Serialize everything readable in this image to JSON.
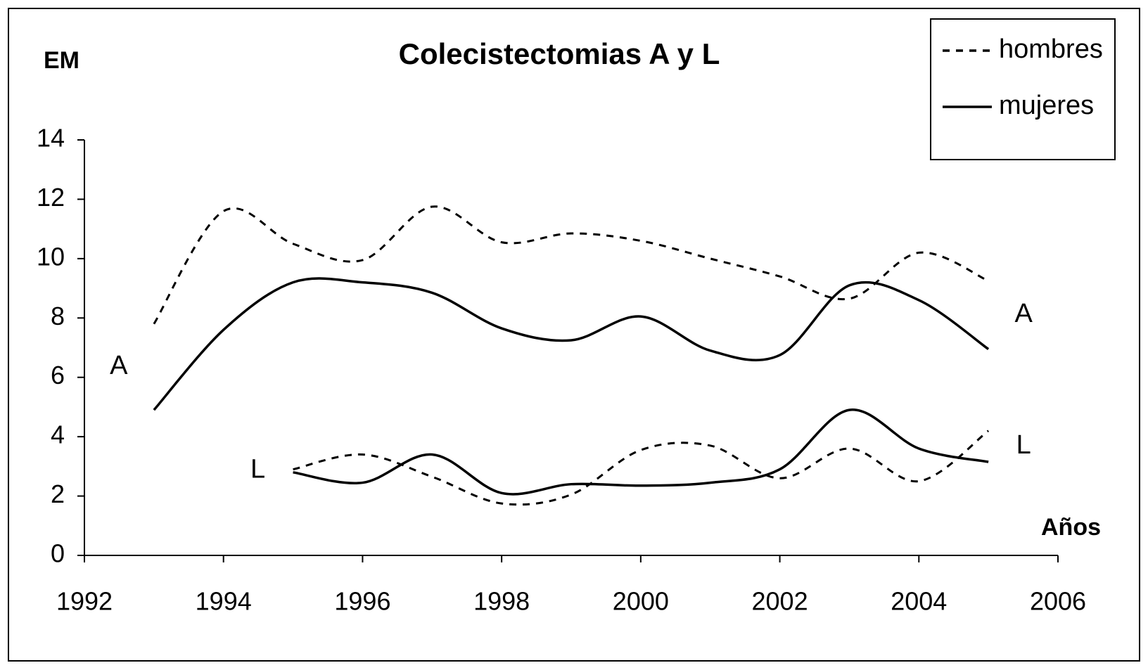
{
  "chart_data": {
    "type": "line",
    "title": "Colecistectomias A y L",
    "ylabel": "EM",
    "xlabel": "Años",
    "groups": [
      "A",
      "L"
    ],
    "x": [
      1993,
      1994,
      1995,
      1996,
      1997,
      1998,
      1999,
      2000,
      2001,
      2002,
      2003,
      2004,
      2005
    ],
    "series": [
      {
        "name": "hombres",
        "color": "#000000",
        "dashed": true,
        "values": [
          [
            7.8,
            11.6,
            10.5,
            9.95,
            11.75,
            10.55,
            10.85,
            10.6,
            10.0,
            9.4,
            8.65,
            10.2,
            9.25
          ],
          [
            null,
            null,
            2.9,
            3.4,
            2.65,
            1.75,
            2.05,
            3.55,
            3.7,
            2.6,
            3.6,
            2.5,
            4.2
          ]
        ]
      },
      {
        "name": "mujeres",
        "color": "#000000",
        "dashed": false,
        "values": [
          [
            4.9,
            7.6,
            9.2,
            9.2,
            8.85,
            7.65,
            7.25,
            8.05,
            6.9,
            6.75,
            9.1,
            8.6,
            6.95
          ],
          [
            null,
            null,
            2.8,
            2.45,
            3.4,
            2.1,
            2.4,
            2.35,
            2.45,
            2.9,
            4.9,
            3.6,
            3.15
          ]
        ]
      }
    ],
    "xlim": [
      1992,
      2006
    ],
    "xticks": [
      1992,
      1994,
      1996,
      1998,
      2000,
      2002,
      2004,
      2006
    ],
    "ylim": [
      0,
      14
    ],
    "yticks": [
      0,
      2,
      4,
      6,
      8,
      10,
      12,
      14
    ],
    "smooth": true,
    "legend": "top-right"
  }
}
